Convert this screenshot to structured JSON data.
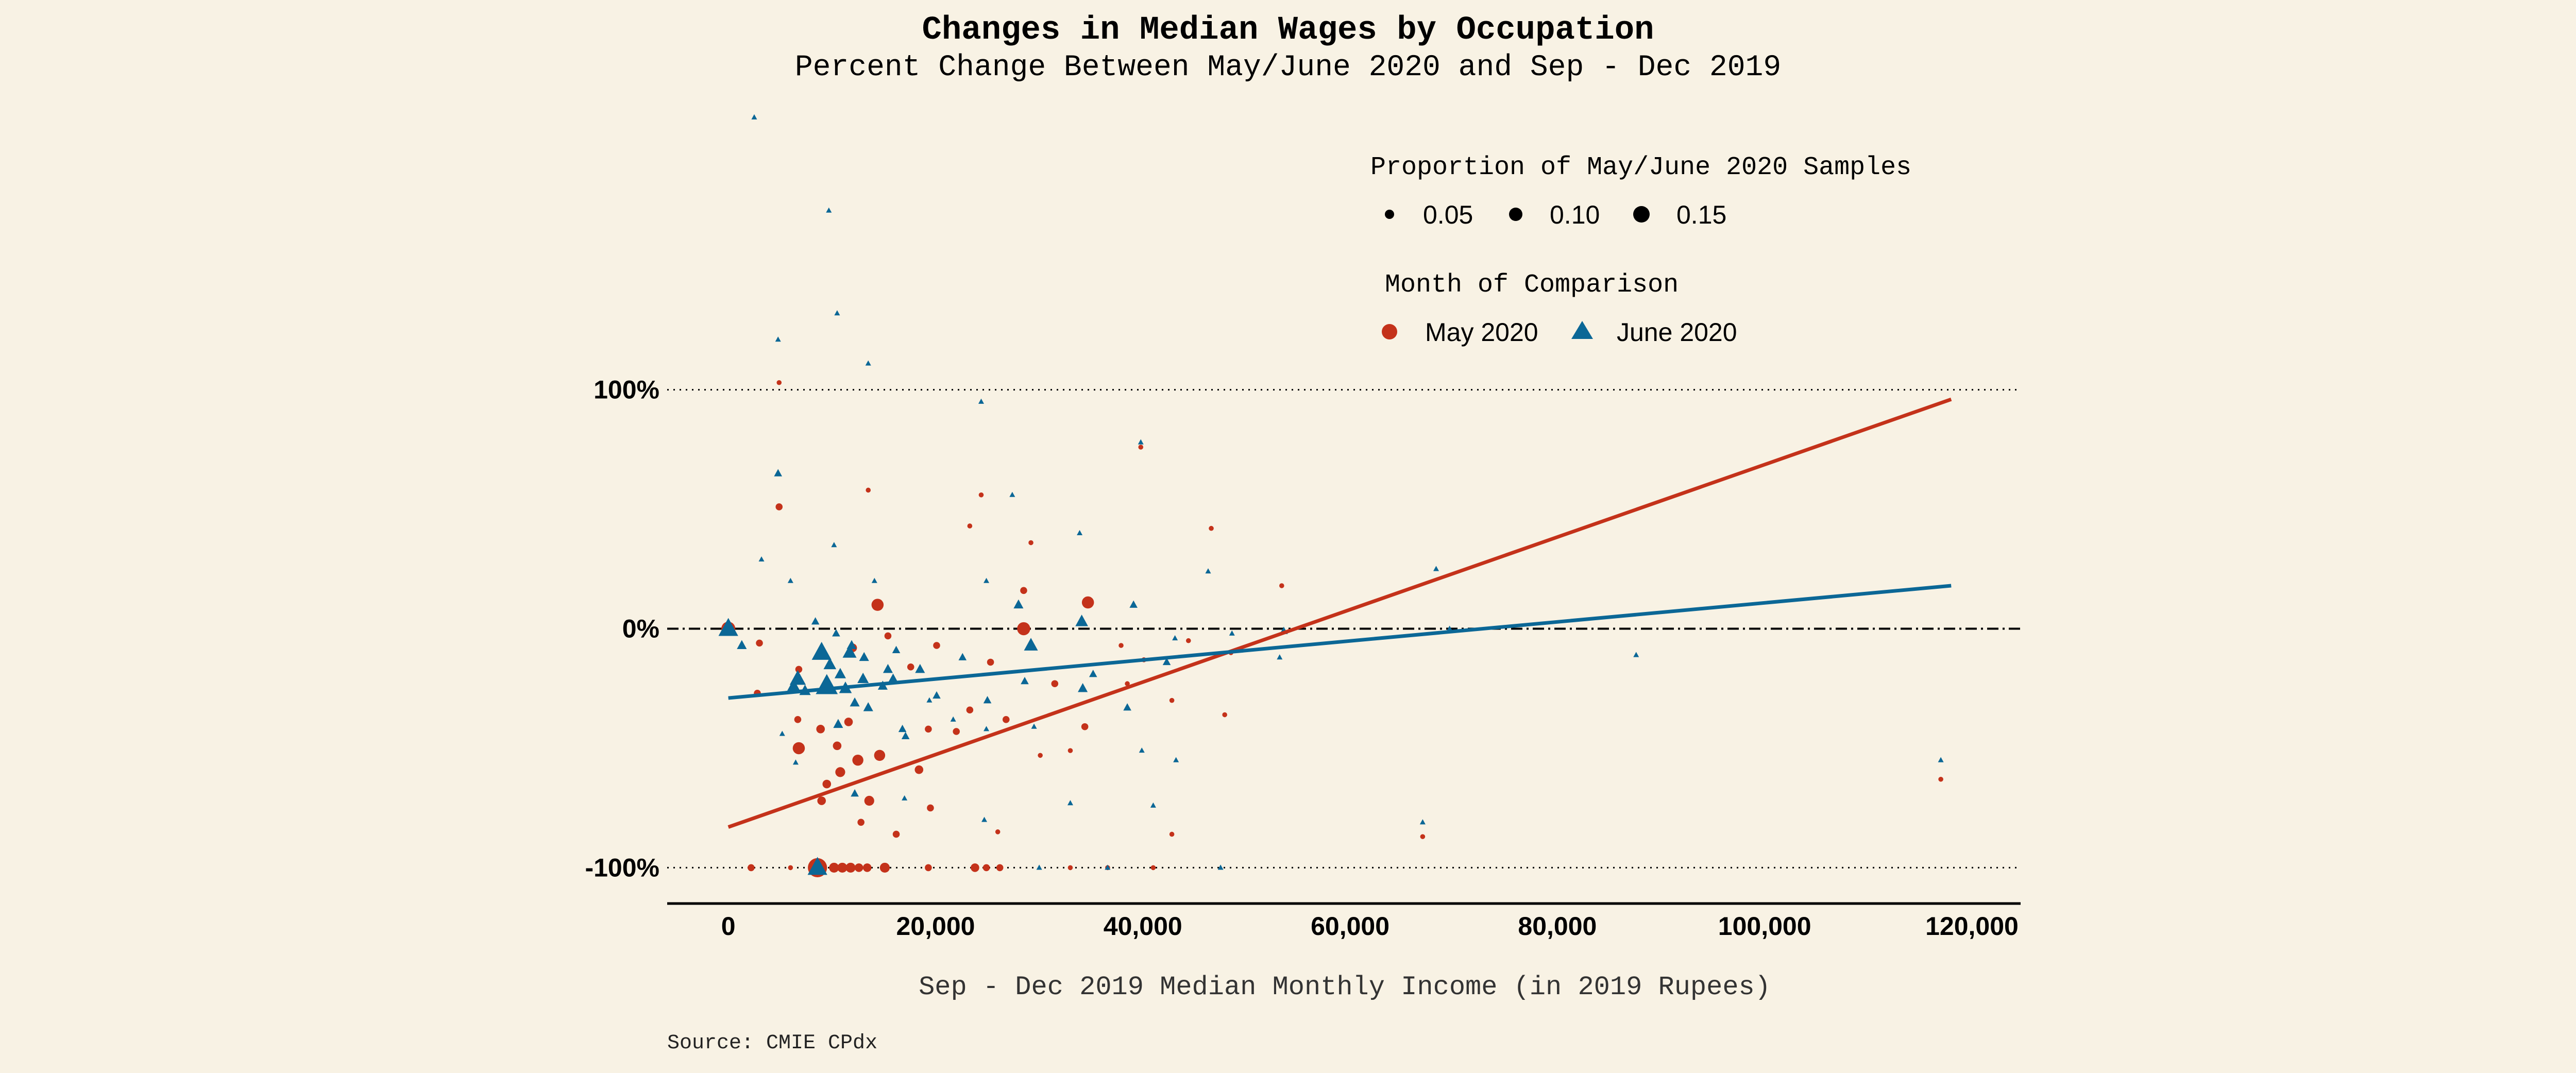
{
  "chart_data": {
    "type": "scatter",
    "title": "Changes in Median Wages by Occupation",
    "subtitle": "Percent Change Between May/June 2020 and Sep - Dec 2019",
    "xlabel": "Sep - Dec 2019 Median Monthly Income (in 2019 Rupees)",
    "ylabel": "",
    "caption": "Source: CMIE CPdx",
    "xlim": [
      -5900,
      124700
    ],
    "ylim": [
      -115,
      220
    ],
    "x_ticks": [
      0,
      20000,
      40000,
      60000,
      80000,
      100000,
      120000
    ],
    "x_tick_labels": [
      "0",
      "20,000",
      "40,000",
      "60,000",
      "80,000",
      "100,000",
      "120,000"
    ],
    "y_ticks": [
      -100,
      0,
      100
    ],
    "y_tick_labels": [
      "-100%",
      "0%",
      "100%"
    ],
    "grid": "horizontal reference lines at -100%, 0% (dash-dot), 100%",
    "legend_size": {
      "title": "Proportion of May/June 2020 Samples",
      "entries": [
        {
          "label": "0.05",
          "value": 0.05
        },
        {
          "label": "0.10",
          "value": 0.1
        },
        {
          "label": "0.15",
          "value": 0.15
        }
      ]
    },
    "legend_color": {
      "title": "Month of Comparison",
      "entries": [
        {
          "label": "May 2020",
          "shape": "circle",
          "color": "#C4321A"
        },
        {
          "label": "June 2020",
          "shape": "triangle",
          "color": "#0B6796"
        }
      ]
    },
    "legend_placement": "top-right",
    "series": [
      {
        "name": "May 2020",
        "shape": "circle",
        "color": "#C4321A",
        "trend": {
          "x": [
            0,
            118000
          ],
          "y": [
            -83,
            96
          ]
        },
        "points": [
          [
            4900,
            103,
            0.01
          ],
          [
            39800,
            76,
            0.01
          ],
          [
            4900,
            51,
            0.02
          ],
          [
            13500,
            58,
            0.01
          ],
          [
            24400,
            56,
            0.01
          ],
          [
            23300,
            43,
            0.01
          ],
          [
            46600,
            42,
            0.01
          ],
          [
            29200,
            36,
            0.01
          ],
          [
            53400,
            18,
            0.01
          ],
          [
            28500,
            16,
            0.02
          ],
          [
            14400,
            10,
            0.06
          ],
          [
            34700,
            11,
            0.06
          ],
          [
            28500,
            0,
            0.07
          ],
          [
            0,
            0,
            0.08
          ],
          [
            3000,
            -6,
            0.02
          ],
          [
            2800,
            -27,
            0.02
          ],
          [
            6700,
            -38,
            0.02
          ],
          [
            6800,
            -50,
            0.06
          ],
          [
            10500,
            -49,
            0.03
          ],
          [
            9500,
            -65,
            0.03
          ],
          [
            12500,
            -55,
            0.05
          ],
          [
            14600,
            -53,
            0.05
          ],
          [
            13600,
            -72,
            0.04
          ],
          [
            18400,
            -59,
            0.03
          ],
          [
            19500,
            -75,
            0.02
          ],
          [
            23300,
            -34,
            0.02
          ],
          [
            30100,
            -53,
            0.01
          ],
          [
            33000,
            -51,
            0.01
          ],
          [
            38500,
            -23,
            0.01
          ],
          [
            42800,
            -30,
            0.01
          ],
          [
            47900,
            -36,
            0.01
          ],
          [
            37900,
            -7,
            0.01
          ],
          [
            117000,
            -63,
            0.01
          ],
          [
            67000,
            -87,
            0.01
          ],
          [
            42800,
            -86,
            0.01
          ],
          [
            16200,
            -86,
            0.02
          ],
          [
            17600,
            -16,
            0.02
          ],
          [
            20100,
            -7,
            0.02
          ],
          [
            15400,
            -3,
            0.02
          ],
          [
            25300,
            -14,
            0.02
          ],
          [
            12000,
            -8,
            0.03
          ],
          [
            6800,
            -17,
            0.02
          ],
          [
            8900,
            -42,
            0.03
          ],
          [
            10800,
            -60,
            0.04
          ],
          [
            11600,
            -39,
            0.03
          ],
          [
            19300,
            -42,
            0.02
          ],
          [
            22000,
            -43,
            0.02
          ],
          [
            26800,
            -38,
            0.02
          ],
          [
            31500,
            -23,
            0.02
          ],
          [
            34400,
            -41,
            0.02
          ],
          [
            40100,
            -13,
            0.01
          ],
          [
            44400,
            -5,
            0.01
          ],
          [
            48500,
            -10,
            0.01
          ],
          [
            26000,
            -85,
            0.01
          ],
          [
            9000,
            -72,
            0.03
          ],
          [
            12800,
            -81,
            0.02
          ],
          [
            2200,
            -100,
            0.02
          ],
          [
            6000,
            -100,
            0.01
          ],
          [
            8600,
            -100,
            0.15
          ],
          [
            10200,
            -100,
            0.04
          ],
          [
            11000,
            -100,
            0.04
          ],
          [
            11800,
            -100,
            0.04
          ],
          [
            12600,
            -100,
            0.03
          ],
          [
            13400,
            -100,
            0.03
          ],
          [
            15100,
            -100,
            0.04
          ],
          [
            19300,
            -100,
            0.02
          ],
          [
            23800,
            -100,
            0.03
          ],
          [
            24900,
            -100,
            0.02
          ],
          [
            26200,
            -100,
            0.02
          ],
          [
            33000,
            -100,
            0.01
          ],
          [
            36600,
            -100,
            0.01
          ],
          [
            41000,
            -100,
            0.01
          ]
        ]
      },
      {
        "name": "June 2020",
        "shape": "triangle",
        "color": "#0B6796",
        "trend": {
          "x": [
            0,
            118000
          ],
          "y": [
            -29,
            18
          ]
        },
        "points": [
          [
            2500,
            214,
            0.01
          ],
          [
            9700,
            175,
            0.01
          ],
          [
            10500,
            132,
            0.01
          ],
          [
            4800,
            121,
            0.01
          ],
          [
            13500,
            111,
            0.01
          ],
          [
            24400,
            95,
            0.01
          ],
          [
            39800,
            78,
            0.01
          ],
          [
            4800,
            65,
            0.02
          ],
          [
            27400,
            56,
            0.01
          ],
          [
            3200,
            29,
            0.01
          ],
          [
            33900,
            40,
            0.01
          ],
          [
            10200,
            35,
            0.01
          ],
          [
            14100,
            20,
            0.01
          ],
          [
            6000,
            20,
            0.01
          ],
          [
            24900,
            20,
            0.01
          ],
          [
            46300,
            24,
            0.01
          ],
          [
            68300,
            25,
            0.01
          ],
          [
            0,
            0,
            0.12
          ],
          [
            1300,
            -7,
            0.03
          ],
          [
            8400,
            3,
            0.02
          ],
          [
            9000,
            -10,
            0.12
          ],
          [
            9500,
            -24,
            0.15
          ],
          [
            6700,
            -21,
            0.08
          ],
          [
            6300,
            -24,
            0.05
          ],
          [
            11700,
            -10,
            0.06
          ],
          [
            13000,
            -21,
            0.04
          ],
          [
            15400,
            -17,
            0.03
          ],
          [
            18500,
            -17,
            0.03
          ],
          [
            28000,
            10,
            0.03
          ],
          [
            34100,
            3,
            0.05
          ],
          [
            29200,
            -7,
            0.06
          ],
          [
            39100,
            10,
            0.02
          ],
          [
            42300,
            -14,
            0.02
          ],
          [
            35200,
            -19,
            0.02
          ],
          [
            53200,
            -12,
            0.01
          ],
          [
            69600,
            0,
            0.01
          ],
          [
            87600,
            -11,
            0.01
          ],
          [
            117000,
            -55,
            0.01
          ],
          [
            67000,
            -81,
            0.01
          ],
          [
            47500,
            -100,
            0.01
          ],
          [
            41000,
            -74,
            0.01
          ],
          [
            39900,
            -51,
            0.01
          ],
          [
            33000,
            -73,
            0.01
          ],
          [
            24700,
            -80,
            0.01
          ],
          [
            17000,
            -71,
            0.01
          ],
          [
            12200,
            -69,
            0.02
          ],
          [
            6500,
            -56,
            0.01
          ],
          [
            5200,
            -44,
            0.01
          ],
          [
            10600,
            -40,
            0.03
          ],
          [
            16800,
            -42,
            0.02
          ],
          [
            21700,
            -38,
            0.01
          ],
          [
            24900,
            -42,
            0.01
          ],
          [
            29500,
            -41,
            0.01
          ],
          [
            38500,
            -33,
            0.02
          ],
          [
            13500,
            -33,
            0.03
          ],
          [
            12200,
            -31,
            0.03
          ],
          [
            14900,
            -24,
            0.03
          ],
          [
            10800,
            -19,
            0.04
          ],
          [
            11900,
            -7,
            0.03
          ],
          [
            16200,
            -9,
            0.02
          ],
          [
            20100,
            -28,
            0.02
          ],
          [
            30000,
            -100,
            0.01
          ],
          [
            36600,
            -100,
            0.01
          ],
          [
            8600,
            -100,
            0.12
          ],
          [
            53600,
            -1,
            0.02
          ],
          [
            9800,
            -15,
            0.05
          ],
          [
            10400,
            -2,
            0.02
          ],
          [
            13100,
            -12,
            0.03
          ],
          [
            7400,
            -26,
            0.04
          ],
          [
            11300,
            -25,
            0.05
          ],
          [
            15900,
            -21,
            0.03
          ],
          [
            22600,
            -12,
            0.02
          ],
          [
            34200,
            -25,
            0.03
          ],
          [
            28600,
            -22,
            0.02
          ],
          [
            43200,
            -55,
            0.01
          ],
          [
            17100,
            -45,
            0.02
          ],
          [
            19400,
            -30,
            0.01
          ],
          [
            25000,
            -30,
            0.02
          ],
          [
            48600,
            -2,
            0.01
          ],
          [
            43100,
            -4,
            0.01
          ]
        ]
      }
    ]
  }
}
